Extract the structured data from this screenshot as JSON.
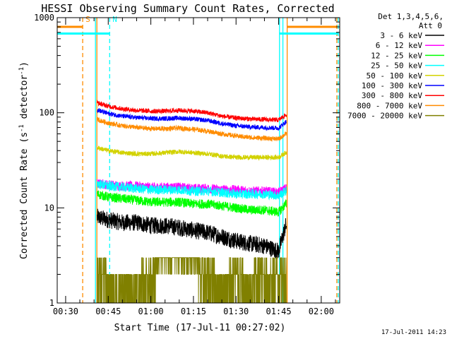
{
  "chart_data": {
    "type": "line",
    "title": "HESSI Observing Summary Count Rates, Corrected",
    "xlabel": "Start Time (17-Jul-11 00:27:02)",
    "ylabel_main": "Corrected Count Rate (s",
    "ylabel_sup1": "-1",
    "ylabel_mid": " detector",
    "ylabel_sup2": "-1",
    "ylabel_end": ")",
    "y_scale": "log",
    "ylim": [
      1,
      1000
    ],
    "xlim_minutes": [
      27.03,
      126.5
    ],
    "x_ticks": [
      {
        "label": "00:30",
        "minute": 30
      },
      {
        "label": "00:45",
        "minute": 45
      },
      {
        "label": "01:00",
        "minute": 60
      },
      {
        "label": "01:15",
        "minute": 75
      },
      {
        "label": "01:30",
        "minute": 90
      },
      {
        "label": "01:45",
        "minute": 105
      },
      {
        "label": "02:00",
        "minute": 120
      }
    ],
    "y_ticks": [
      {
        "label": "1",
        "value": 1
      },
      {
        "label": "10",
        "value": 10
      },
      {
        "label": "100",
        "value": 100
      },
      {
        "label": "1000",
        "value": 1000
      }
    ],
    "legend": {
      "placement": "top-right outside",
      "header1": "Det 1,3,4,5,6,",
      "header2": "Att 0"
    },
    "data_window_minutes": [
      40.5,
      108.0
    ],
    "series": [
      {
        "name": "3 - 6 keV",
        "color": "#000000",
        "x": [
          41,
          45,
          50,
          55,
          60,
          65,
          70,
          75,
          80,
          85,
          90,
          95,
          100,
          105,
          107.5
        ],
        "y": [
          8.0,
          7.5,
          7.0,
          7.0,
          6.5,
          6.5,
          6.2,
          5.8,
          5.5,
          5.0,
          4.5,
          4.2,
          4.0,
          3.5,
          6.5
        ]
      },
      {
        "name": "6 - 12 keV",
        "color": "#ff00ff",
        "x": [
          41,
          45,
          50,
          55,
          60,
          65,
          70,
          75,
          80,
          85,
          90,
          95,
          100,
          105,
          107.5
        ],
        "y": [
          18,
          17.5,
          17,
          17,
          16.5,
          16.5,
          16.5,
          16,
          16,
          15.5,
          15.5,
          15,
          15,
          14.5,
          16
        ]
      },
      {
        "name": "12 - 25 keV",
        "color": "#00ff00",
        "x": [
          41,
          45,
          50,
          55,
          60,
          65,
          70,
          75,
          80,
          85,
          90,
          95,
          100,
          105,
          107.5
        ],
        "y": [
          14,
          13,
          12.5,
          12,
          11.5,
          11.5,
          11.5,
          11,
          11,
          10.5,
          10,
          9.5,
          9.5,
          9,
          11
        ]
      },
      {
        "name": "25 - 50 keV",
        "color": "#00ffff",
        "x": [
          41,
          45,
          50,
          55,
          60,
          65,
          70,
          75,
          80,
          85,
          90,
          95,
          100,
          105,
          107.5
        ],
        "y": [
          18,
          17,
          16.5,
          16,
          15.5,
          15.5,
          15.5,
          15,
          15,
          14.5,
          14,
          14,
          14,
          13.5,
          15
        ]
      },
      {
        "name": "50 - 100 keV",
        "color": "#d2d200",
        "x": [
          41,
          45,
          50,
          55,
          60,
          65,
          70,
          75,
          80,
          85,
          90,
          95,
          100,
          105,
          107.5
        ],
        "y": [
          43,
          40,
          38,
          37,
          37,
          38,
          39,
          38,
          37,
          35,
          34,
          34,
          34,
          34,
          38
        ]
      },
      {
        "name": "100 - 300 keV",
        "color": "#0000ff",
        "x": [
          41,
          45,
          50,
          55,
          60,
          65,
          70,
          75,
          80,
          85,
          90,
          95,
          100,
          105,
          107.5
        ],
        "y": [
          108,
          98,
          92,
          89,
          87,
          87,
          88,
          86,
          83,
          77,
          73,
          71,
          70,
          69,
          80
        ]
      },
      {
        "name": "300 - 800 keV",
        "color": "#ff0000",
        "x": [
          41,
          45,
          50,
          55,
          60,
          65,
          70,
          75,
          80,
          85,
          90,
          95,
          100,
          105,
          107.5
        ],
        "y": [
          128,
          117,
          110,
          106,
          104,
          104,
          106,
          104,
          100,
          92,
          88,
          86,
          85,
          84,
          95
        ]
      },
      {
        "name": "800 - 7000 keV",
        "color": "#ff8c00",
        "x": [
          41,
          45,
          50,
          55,
          60,
          65,
          70,
          75,
          80,
          85,
          90,
          95,
          100,
          105,
          107.5
        ],
        "y": [
          85,
          78,
          73,
          70,
          68,
          68,
          69,
          67,
          64,
          60,
          57,
          55,
          54,
          53,
          60
        ]
      },
      {
        "name": "7000 - 20000 keV",
        "color": "#808000",
        "x": [
          41,
          45,
          50,
          55,
          60,
          65,
          70,
          75,
          80,
          85,
          90,
          95,
          100,
          105,
          107.5
        ],
        "y": [
          1.9,
          1.5,
          1.5,
          1.3,
          2.2,
          2.5,
          2.8,
          2.8,
          1.6,
          1.5,
          1.6,
          1.5,
          1.7,
          1.6,
          2.0
        ]
      }
    ],
    "annotations": [
      {
        "label": "S",
        "color": "#ff8c00",
        "minute": 36.0,
        "line": "dashed"
      },
      {
        "label": "N",
        "color": "#00ffff",
        "minute": 45.5,
        "line": "dashed"
      }
    ],
    "overlay_lines": [
      {
        "color": "#00ffff",
        "minute": 40.5,
        "style": "solid"
      },
      {
        "color": "#ff8c00",
        "minute": 41.0,
        "style": "solid"
      },
      {
        "color": "#00ffff",
        "minute": 105.3,
        "style": "solid"
      },
      {
        "color": "#00ffff",
        "minute": 106.5,
        "style": "solid"
      },
      {
        "color": "#ff8c00",
        "minute": 108.0,
        "style": "solid"
      },
      {
        "color": "#ff8c00",
        "minute": 125.5,
        "style": "dashed"
      },
      {
        "color": "#00ffff",
        "minute": 126.0,
        "style": "dashed"
      }
    ],
    "bars": [
      {
        "color": "#ff8c00",
        "value": 800,
        "from_minute": 27.03,
        "to_minute": 36.0
      },
      {
        "color": "#00ffff",
        "value": 680,
        "from_minute": 27.03,
        "to_minute": 45.5
      },
      {
        "color": "#ff8c00",
        "value": 800,
        "from_minute": 108.0,
        "to_minute": 125.5
      },
      {
        "color": "#00ffff",
        "value": 680,
        "from_minute": 105.3,
        "to_minute": 126.0
      }
    ]
  },
  "footer": {
    "timestamp": "17-Jul-2011 14:23"
  }
}
